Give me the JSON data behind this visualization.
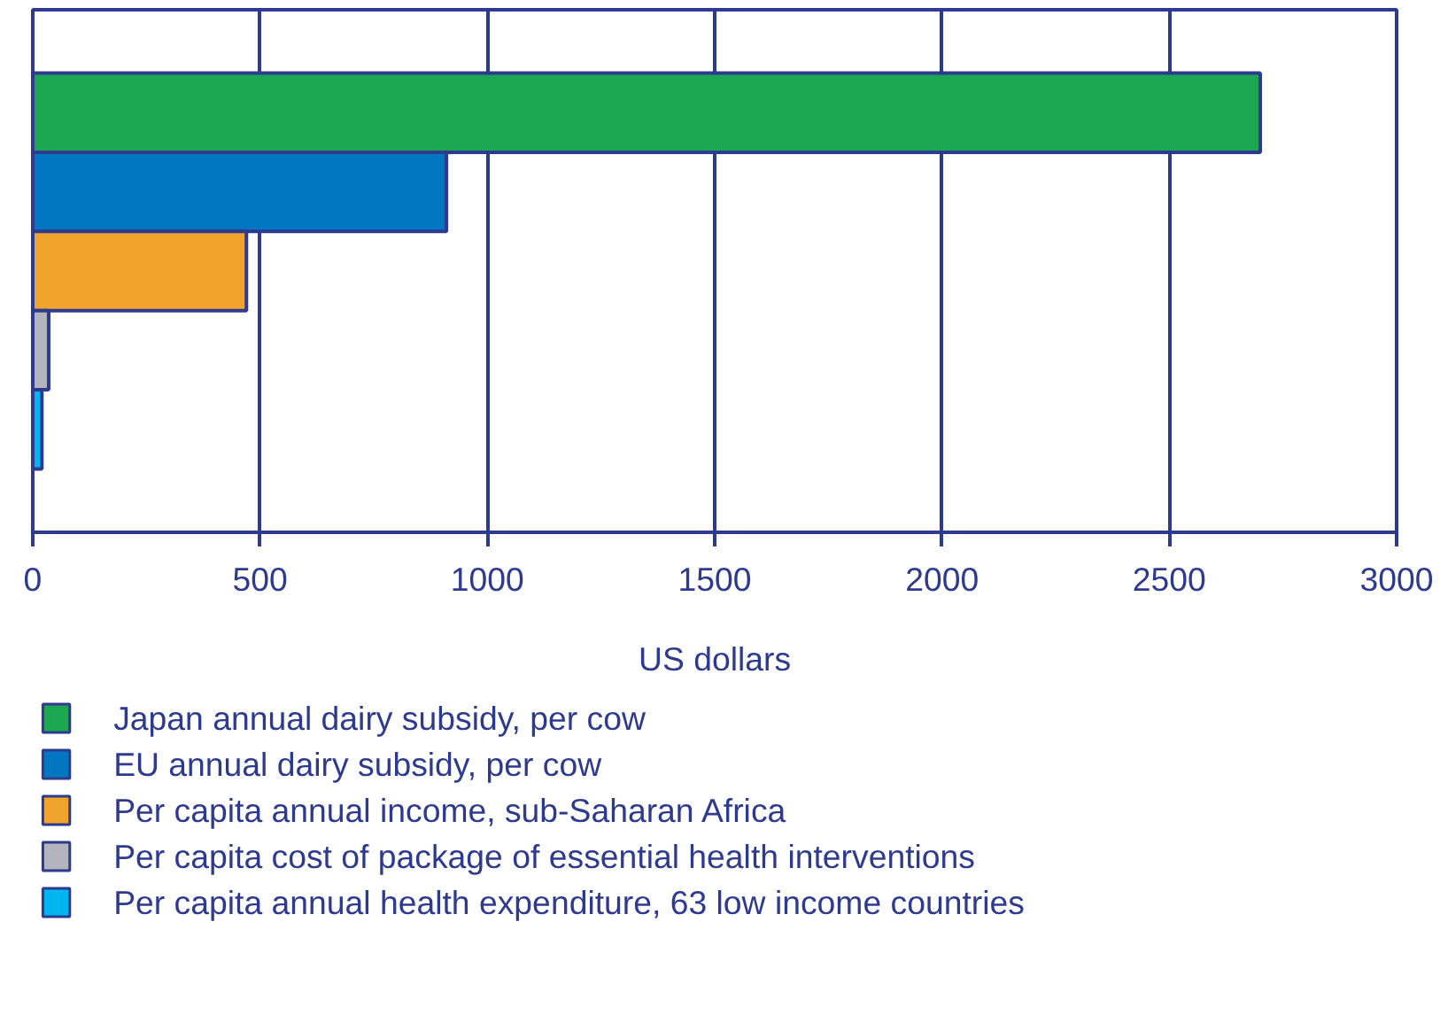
{
  "chart_data": {
    "type": "bar",
    "orientation": "horizontal",
    "categories": [
      null,
      null,
      null,
      null,
      null
    ],
    "xlabel": "US dollars",
    "xlim": [
      0,
      3000
    ],
    "xticks": [
      0,
      500,
      1000,
      1500,
      2000,
      2500,
      3000
    ],
    "grid": "x",
    "legend": "bottom",
    "tick_labels": "x",
    "series": [
      {
        "name": "Japan annual dairy subsidy, per cow",
        "color": "#1ca752",
        "values": [
          2700,
          null,
          null,
          null,
          null
        ]
      },
      {
        "name": "EU annual dairy subsidy, per cow",
        "color": "#0077c0",
        "values": [
          null,
          910,
          null,
          null,
          null
        ]
      },
      {
        "name": "Per capita annual income, sub-Saharan Africa",
        "color": "#f0a42c",
        "values": [
          null,
          null,
          470,
          null,
          null
        ]
      },
      {
        "name": "Per capita cost of package of essential health interventions",
        "color": "#b3b5bd",
        "values": [
          null,
          null,
          null,
          35,
          null
        ]
      },
      {
        "name": "Per capita annual health expenditure, 63 low income countries",
        "color": "#00b6ef",
        "values": [
          null,
          null,
          null,
          null,
          20
        ]
      }
    ]
  }
}
